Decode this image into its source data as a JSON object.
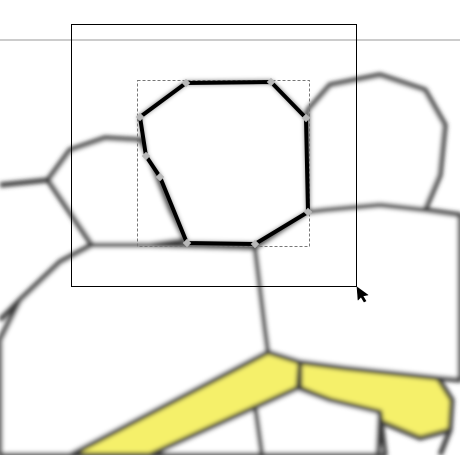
{
  "canvas": {
    "background": "#ffffff",
    "cell_stroke": "#3a3a3a",
    "cell_fill": "#ffffff",
    "yellow_fill": "#f5f06a",
    "guide_line": "#9a9a9a",
    "selection_frame": "#000000",
    "selected_path_stroke": "#000000",
    "bbox_dash": "#777777",
    "node_fill": "#b8b8b8"
  },
  "tool": {
    "active": "selection-drag",
    "cursor_icon": "arrow-pointer-icon"
  },
  "selection": {
    "selected_object": "polygon-path",
    "node_count": 9
  }
}
